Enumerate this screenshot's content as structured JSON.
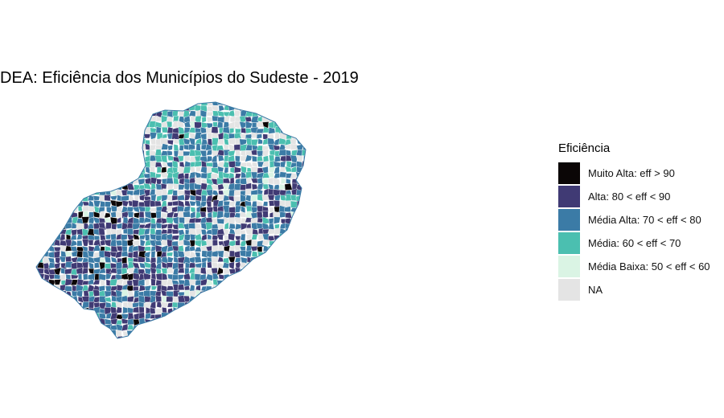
{
  "title": "DEA: Eficiência dos Municípios do Sudeste - 2019",
  "legend": {
    "title": "Eficiência",
    "items": [
      {
        "label": "Muito Alta: eff > 90",
        "color": "#0b0606"
      },
      {
        "label": "Alta: 80 < eff < 90",
        "color": "#403a74"
      },
      {
        "label": "Média Alta: 70 < eff < 80",
        "color": "#3b7ba6"
      },
      {
        "label": "Média: 60 < eff < 70",
        "color": "#4bbfb0"
      },
      {
        "label": "Média Baixa: 50 < eff < 60",
        "color": "#daf4e4"
      },
      {
        "label": "NA",
        "color": "#e4e4e4"
      }
    ]
  },
  "region": "Sudeste"
}
